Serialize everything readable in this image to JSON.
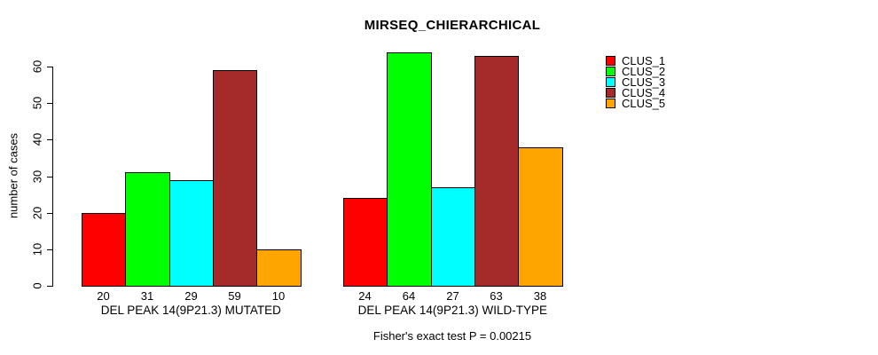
{
  "chart_data": {
    "type": "bar",
    "title": "MIRSEQ_CHIERARCHICAL",
    "ylabel": "number of cases",
    "xlabel": "",
    "ylim": [
      0,
      60
    ],
    "yticks": [
      0,
      10,
      20,
      30,
      40,
      50,
      60
    ],
    "grid": false,
    "legend_position": "right",
    "categories": [
      "DEL PEAK 14(9P21.3) MUTATED",
      "DEL PEAK 14(9P21.3) WILD-TYPE"
    ],
    "series": [
      {
        "name": "CLUS_1",
        "color": "#FF0000",
        "values": [
          20,
          24
        ]
      },
      {
        "name": "CLUS_2",
        "color": "#00FF00",
        "values": [
          31,
          64
        ]
      },
      {
        "name": "CLUS_3",
        "color": "#00FFFF",
        "values": [
          29,
          27
        ]
      },
      {
        "name": "CLUS_4",
        "color": "#A52A2A",
        "values": [
          59,
          63
        ]
      },
      {
        "name": "CLUS_5",
        "color": "#FFA500",
        "values": [
          10,
          38
        ]
      }
    ],
    "bar_value_labels": {
      "DEL PEAK 14(9P21.3) MUTATED": [
        20,
        31,
        29,
        59,
        10
      ],
      "DEL PEAK 14(9P21.3) WILD-TYPE": [
        24,
        64,
        27,
        63,
        38
      ]
    },
    "annotation": "Fisher's exact test P = 0.00215",
    "axis_color": "#000000",
    "bar_border_color": "#000000",
    "background_color": "#FFFFFF"
  }
}
